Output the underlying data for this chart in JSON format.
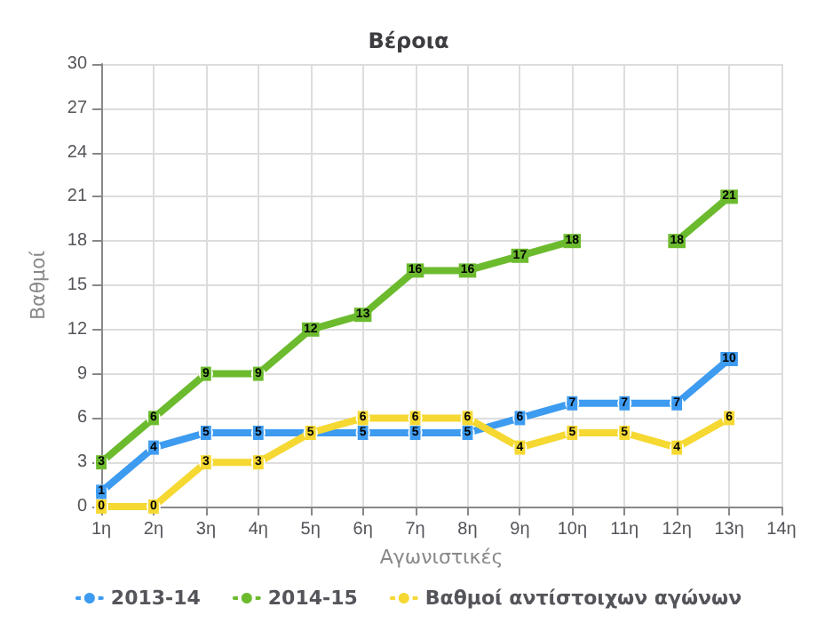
{
  "chart_data": {
    "type": "line",
    "title": "Βέροια",
    "xlabel": "Αγωνιστικές",
    "ylabel": "Βαθμοί",
    "categories": [
      "1η",
      "2η",
      "3η",
      "4η",
      "5η",
      "6η",
      "7η",
      "8η",
      "9η",
      "10η",
      "11η",
      "12η",
      "13η",
      "14η"
    ],
    "series": [
      {
        "name": "2013-14",
        "color": "#3d9bf0",
        "values": [
          1,
          4,
          5,
          5,
          5,
          5,
          5,
          5,
          6,
          7,
          7,
          7,
          10,
          null
        ],
        "value_labels": [
          "1",
          "4",
          "5",
          "5",
          null,
          "5",
          "5",
          "5",
          "6",
          "7",
          "7",
          "7",
          "10",
          null
        ]
      },
      {
        "name": "2014-15",
        "color": "#6cbb2e",
        "values": [
          3,
          6,
          9,
          9,
          12,
          13,
          16,
          16,
          17,
          18,
          null,
          18,
          21,
          null
        ],
        "value_labels": [
          "3",
          "6",
          "9",
          "9",
          "12",
          "13",
          "16",
          "16",
          "17",
          "18",
          null,
          "18",
          "21",
          null
        ]
      },
      {
        "name": "Βαθμοί αντίστοιχων αγώνων",
        "color": "#f5d832",
        "values": [
          0,
          0,
          3,
          3,
          5,
          6,
          6,
          6,
          4,
          5,
          5,
          4,
          6,
          null
        ],
        "value_labels": [
          "0",
          "0",
          "3",
          "3",
          "5",
          "6",
          "6",
          "6",
          "4",
          "5",
          "5",
          "4",
          "6",
          null
        ]
      }
    ],
    "ylim": [
      0,
      30
    ],
    "yticks": [
      0,
      3,
      6,
      9,
      12,
      15,
      18,
      21,
      24,
      27,
      30
    ],
    "grid": true,
    "legend": "bottom",
    "marker": "circle",
    "line_style": "solid"
  }
}
